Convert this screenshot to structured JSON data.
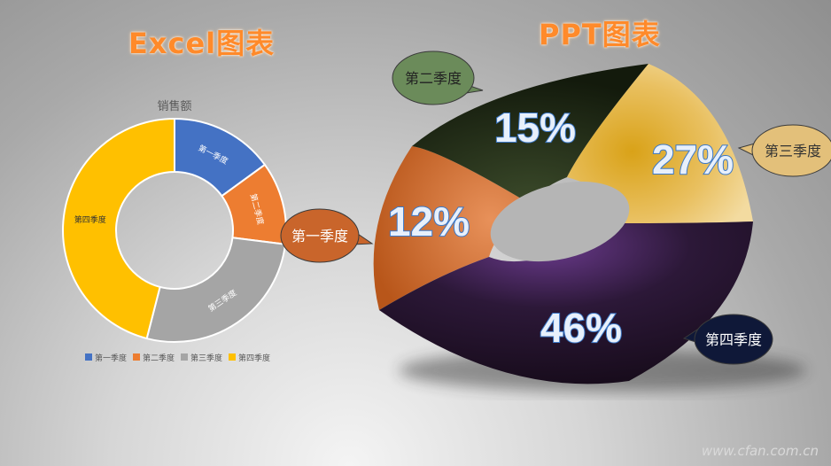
{
  "headings": {
    "excel": "Excel图表",
    "ppt": "PPT图表"
  },
  "watermark": "www.cfan.com.cn",
  "chart_data": [
    {
      "type": "pie",
      "variant": "donut",
      "title": "销售额",
      "categories": [
        "第一季度",
        "第二季度",
        "第三季度",
        "第四季度"
      ],
      "values": [
        15,
        12,
        27,
        46
      ],
      "colors": [
        "#4472c4",
        "#ed7d31",
        "#a5a5a5",
        "#ffc000"
      ],
      "legend": "bottom"
    },
    {
      "type": "pie",
      "variant": "3d-donut",
      "categories": [
        "第一季度",
        "第二季度",
        "第三季度",
        "第四季度"
      ],
      "values": [
        12,
        15,
        27,
        46
      ],
      "data_labels": [
        "12%",
        "15%",
        "27%",
        "46%"
      ],
      "colors": [
        "#c96a26",
        "#1e2812",
        "#e6c06a",
        "#2a1a34"
      ],
      "callout_colors": [
        "#c9652b",
        "#6b8b5a",
        "#e3c07a",
        "#0f1838"
      ]
    }
  ]
}
